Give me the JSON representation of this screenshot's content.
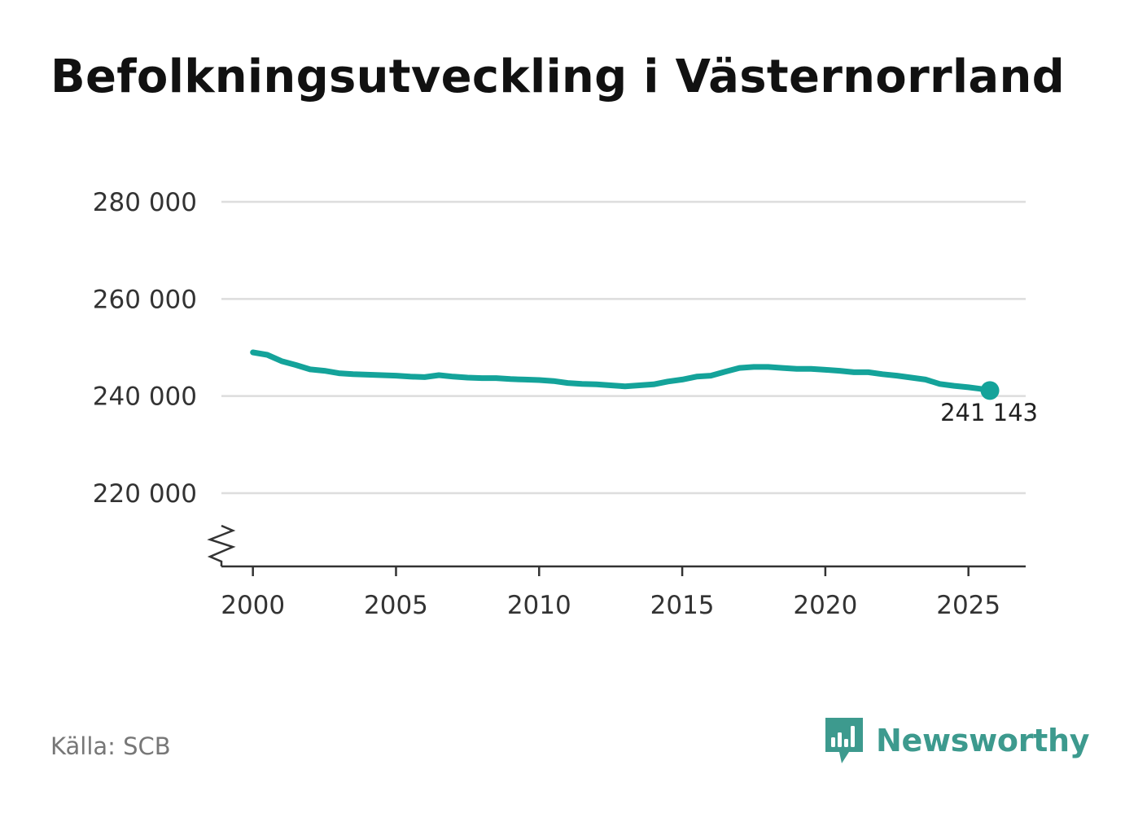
{
  "title": "Befolkningsutveckling i Västernorrland",
  "source": "Källa: SCB",
  "brand": {
    "name": "Newsworthy",
    "icon": "newsworthy-logo-icon"
  },
  "colors": {
    "line": "#14a39a",
    "grid": "#dddddd",
    "axis": "#333333",
    "brand": "#3d9a8e"
  },
  "chart_data": {
    "type": "line",
    "title": "Befolkningsutveckling i Västernorrland",
    "xlabel": "",
    "ylabel": "",
    "x_ticks": [
      2000,
      2005,
      2010,
      2015,
      2020,
      2025
    ],
    "x_tick_labels": [
      "2000",
      "2005",
      "2010",
      "2015",
      "2020",
      "2025"
    ],
    "y_ticks": [
      220000,
      240000,
      260000,
      280000
    ],
    "y_tick_labels": [
      "220 000",
      "240 000",
      "260 000",
      "280 000"
    ],
    "xlim": [
      1998.9,
      2027.0
    ],
    "ylim": [
      205000,
      280000
    ],
    "y_axis_break": true,
    "grid": "horizontal",
    "end_label": "241 143",
    "series": [
      {
        "x": [
          2000.0,
          2000.5,
          2001.0,
          2001.5,
          2002.0,
          2002.5,
          2003.0,
          2003.5,
          2004.0,
          2004.5,
          2005.0,
          2005.5,
          2006.0,
          2006.5,
          2007.0,
          2007.5,
          2008.0,
          2008.5,
          2009.0,
          2009.5,
          2010.0,
          2010.5,
          2011.0,
          2011.5,
          2012.0,
          2012.5,
          2013.0,
          2013.5,
          2014.0,
          2014.5,
          2015.0,
          2015.5,
          2016.0,
          2016.5,
          2017.0,
          2017.5,
          2018.0,
          2018.5,
          2019.0,
          2019.5,
          2020.0,
          2020.5,
          2021.0,
          2021.5,
          2022.0,
          2022.5,
          2023.0,
          2023.5,
          2024.0,
          2024.5,
          2025.0,
          2025.4,
          2025.75
        ],
        "y": [
          249000,
          248500,
          247200,
          246400,
          245500,
          245200,
          244700,
          244500,
          244400,
          244300,
          244200,
          244000,
          243900,
          244300,
          244000,
          243800,
          243700,
          243700,
          243500,
          243400,
          243300,
          243100,
          242700,
          242500,
          242400,
          242200,
          242000,
          242200,
          242400,
          243000,
          243400,
          244000,
          244200,
          245000,
          245800,
          246000,
          246000,
          245800,
          245600,
          245600,
          245400,
          245200,
          244900,
          244900,
          244500,
          244200,
          243800,
          243400,
          242500,
          242100,
          241800,
          241500,
          241143
        ]
      }
    ]
  }
}
